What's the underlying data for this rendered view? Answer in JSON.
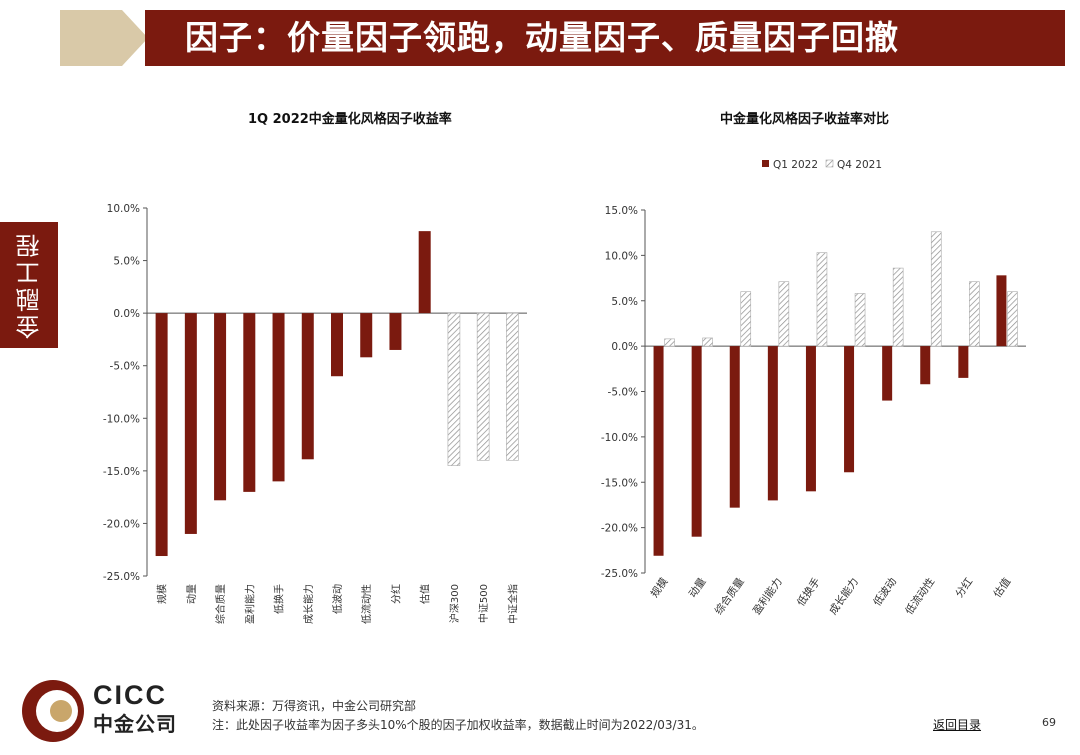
{
  "header": {
    "title": "因子：价量因子领跑，动量因子、质量因子回撤"
  },
  "side_tab": "金融工程",
  "colors": {
    "brand": "#7b1a0f",
    "bar_q1": "#7b1a0f",
    "hatch": "#8c8c8c",
    "gold": "#d9c9a8"
  },
  "chart_data": [
    {
      "type": "bar",
      "title": "1Q 2022中金量化风格因子收益率",
      "categories": [
        "规模",
        "动量",
        "综合质量",
        "盈利能力",
        "低换手",
        "成长能力",
        "低波动",
        "低流动性",
        "分红",
        "估值",
        "沪深300",
        "中证500",
        "中证全指"
      ],
      "series": [
        {
          "name": "",
          "values": [
            -23.1,
            -21.0,
            -17.8,
            -17.0,
            -16.0,
            -13.9,
            -6.0,
            -4.2,
            -3.5,
            7.8,
            -14.5,
            -14.0,
            -14.0
          ]
        }
      ],
      "hatched_categories": [
        "沪深300",
        "中证500",
        "中证全指"
      ],
      "ylim": [
        -25,
        10
      ],
      "yticks": [
        10,
        5,
        0,
        -5,
        -10,
        -15,
        -20,
        -25
      ],
      "ytick_labels": [
        "10.0%",
        "5.0%",
        "0.0%",
        "-5.0%",
        "-10.0%",
        "-15.0%",
        "-20.0%",
        "-25.0%"
      ],
      "legend": "none",
      "grid": false
    },
    {
      "type": "bar",
      "title": "中金量化风格因子收益率对比",
      "categories": [
        "规模",
        "动量",
        "综合质量",
        "盈利能力",
        "低换手",
        "成长能力",
        "低波动",
        "低流动性",
        "分红",
        "估值"
      ],
      "series": [
        {
          "name": "Q1 2022",
          "values": [
            -23.1,
            -21.0,
            -17.8,
            -17.0,
            -16.0,
            -13.9,
            -6.0,
            -4.2,
            -3.5,
            7.8
          ]
        },
        {
          "name": "Q4 2021",
          "values": [
            0.8,
            0.9,
            6.0,
            7.1,
            10.3,
            5.8,
            8.6,
            12.6,
            7.1,
            6.0
          ]
        }
      ],
      "ylim": [
        -25,
        15
      ],
      "yticks": [
        15,
        10,
        5,
        0,
        -5,
        -10,
        -15,
        -20,
        -25
      ],
      "ytick_labels": [
        "15.0%",
        "10.0%",
        "5.0%",
        "0.0%",
        "-5.0%",
        "-10.0%",
        "-15.0%",
        "-20.0%",
        "-25.0%"
      ],
      "legend": "top",
      "grid": false
    }
  ],
  "logo": {
    "en": "CICC",
    "cn": "中金公司"
  },
  "footer": {
    "source": "资料来源：万得资讯，中金公司研究部",
    "note": "注：此处因子收益率为因子多头10%个股的因子加权收益率，数据截止时间为2022/03/31。",
    "back_link": "返回目录",
    "page": "69"
  }
}
